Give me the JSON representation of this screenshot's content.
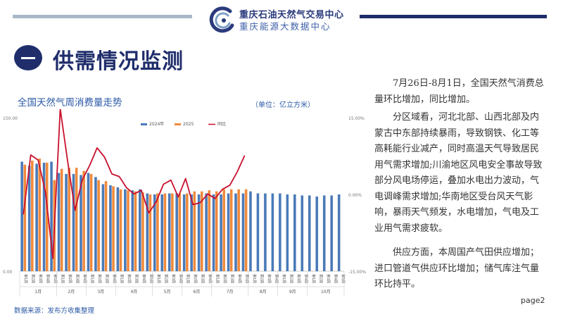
{
  "header": {
    "org_name": "重庆石油天然气交易中心",
    "org_subtitle": "重庆能源大数据中心",
    "logo_icon": "c-swirl-logo-icon",
    "accent_color": "#1f2d6b",
    "light_color": "#a9b8c6"
  },
  "section": {
    "icon": "dash-circle-icon",
    "title": "供需情况监测"
  },
  "chart_header": {
    "title": "全国天然气周消费量走势",
    "unit": "（单位：亿立方米）"
  },
  "chart_data": {
    "type": "bar",
    "title": "全国天然气周消费量走势",
    "week_labels": [
      "第1周",
      "第2周",
      "第3周",
      "第4周",
      "第5周",
      "第1周",
      "第2周",
      "第3周",
      "第4周",
      "第1周",
      "第2周",
      "第3周",
      "第4周",
      "第1周",
      "第2周",
      "第3周",
      "第4周",
      "第5周",
      "第1周",
      "第2周",
      "第3周",
      "第4周",
      "第1周",
      "第2周",
      "第3周",
      "第4周",
      "第1周",
      "第2周",
      "第3周",
      "第4周",
      "第5周",
      "第1周",
      "第2周",
      "第3周",
      "第4周",
      "第1周",
      "第2周",
      "第3周",
      "第4周",
      "第1周",
      "第2周",
      "第3周",
      "第4周",
      "第5周"
    ],
    "months": [
      {
        "label": "1月",
        "count": 5
      },
      {
        "label": "2月",
        "count": 4
      },
      {
        "label": "3月",
        "count": 4
      },
      {
        "label": "4月",
        "count": 5
      },
      {
        "label": "5月",
        "count": 4
      },
      {
        "label": "6月",
        "count": 4
      },
      {
        "label": "7月",
        "count": 5
      },
      {
        "label": "8月",
        "count": 4
      },
      {
        "label": "9月",
        "count": 4
      },
      {
        "label": "10月",
        "count": 5
      }
    ],
    "series": [
      {
        "name": "2024年",
        "color": "#4a7ab8",
        "values": [
          107,
          103,
          105,
          106,
          107,
          96,
          95,
          95,
          94,
          96,
          92,
          85,
          84,
          82,
          80,
          79,
          80,
          76,
          75,
          75,
          76,
          76,
          75,
          75,
          75,
          76,
          75,
          75,
          76,
          76,
          76,
          78,
          76,
          76,
          76,
          76,
          75,
          75,
          74,
          74,
          73,
          74,
          74,
          75
        ]
      },
      {
        "name": "2025",
        "color": "#f08a3c",
        "values": [
          104,
          108,
          110,
          106,
          89,
          100,
          101,
          101,
          98,
          95,
          89,
          88,
          83,
          80,
          79,
          78,
          77,
          75,
          76,
          76,
          76,
          76,
          76,
          78,
          78,
          79,
          78,
          80,
          80,
          80,
          80
        ]
      },
      {
        "name": "同比",
        "color": "#c8102e",
        "values": [
          -3.9,
          7.7,
          6.7,
          0.4,
          -12.5,
          16.7,
          6.5,
          -3.1,
          2.9,
          5.7,
          9.1,
          7.3,
          4,
          3.5,
          1.3,
          0.1,
          0.8,
          -3.6,
          -1.5,
          2,
          2.8,
          -0.5,
          3.1,
          -2,
          -1.6,
          0.1,
          -0.8,
          1,
          1.8,
          4.4,
          7.6
        ]
      }
    ],
    "y_left": {
      "ticks": [
        "0.00",
        "150.00"
      ],
      "range": [
        0,
        150
      ]
    },
    "y_right": {
      "ticks": [
        "-15.00%",
        "0.00%",
        "15.00%"
      ],
      "range": [
        -15,
        15
      ]
    },
    "legend_position": "top-center",
    "grid": false
  },
  "text": {
    "p1": "7月26日-8月1日，全国天然气消费总量环比增加，同比增加。",
    "p2": "分区域看，河北北部、山西北部及内蒙古中东部持续暴雨，导致钢铁、化工等高耗能行业减产，同时高温天气导致居民用气需求增加;川渝地区风电安全事故导致部分风电场停运，叠加水电出力波动，气电调峰需求增加;华南地区受台风天气影响，暴雨天气频发，水电增加，气电及工业用气需求疲软。",
    "p3": "供应方面，本周国产气田供应增加；进口管道气供应环比增加；储气库注气量环比持平。"
  },
  "footer": {
    "source": "数据来源：发布方收集整理",
    "page": "page2"
  }
}
